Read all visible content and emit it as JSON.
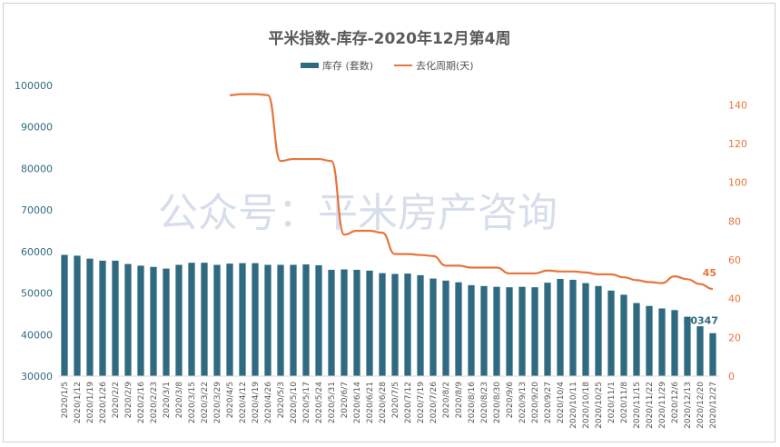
{
  "chart_data": {
    "type": "bar",
    "title": "平米指数-库存-2020年12月第4周",
    "watermark": "公众号：平米房产咨询",
    "categories": [
      "2020/1/5",
      "2020/1/12",
      "2020/1/19",
      "2020/1/26",
      "2020/2/2",
      "2020/2/9",
      "2020/2/16",
      "2020/2/23",
      "2020/3/1",
      "2020/3/8",
      "2020/3/15",
      "2020/3/22",
      "2020/3/29",
      "2020/4/5",
      "2020/4/12",
      "2020/4/19",
      "2020/4/26",
      "2020/5/3",
      "2020/5/10",
      "2020/5/17",
      "2020/5/24",
      "2020/5/31",
      "2020/6/7",
      "2020/6/14",
      "2020/6/21",
      "2020/6/28",
      "2020/7/5",
      "2020/7/12",
      "2020/7/19",
      "2020/7/26",
      "2020/8/2",
      "2020/8/9",
      "2020/8/16",
      "2020/8/23",
      "2020/8/30",
      "2020/9/6",
      "2020/9/13",
      "2020/9/20",
      "2020/9/27",
      "2020/10/4",
      "2020/10/11",
      "2020/10/18",
      "2020/10/25",
      "2020/11/1",
      "2020/11/8",
      "2020/11/15",
      "2020/11/22",
      "2020/11/29",
      "2020/12/6",
      "2020/12/13",
      "2020/12/20",
      "2020/12/27"
    ],
    "series": [
      {
        "name": "库存 (套数)",
        "type": "bar",
        "axis": "left",
        "color": "#2f6a80",
        "values": [
          59200,
          59000,
          58300,
          57800,
          57800,
          57000,
          56600,
          56300,
          55900,
          56800,
          57300,
          57300,
          56800,
          57100,
          57200,
          57200,
          56800,
          56800,
          56800,
          56900,
          56700,
          55600,
          55700,
          55600,
          55400,
          54800,
          54600,
          54700,
          54300,
          53500,
          53000,
          52600,
          51900,
          51700,
          51500,
          51400,
          51500,
          51400,
          52500,
          53400,
          53200,
          52400,
          51700,
          50600,
          49600,
          47600,
          46900,
          46300,
          45900,
          44300,
          42000,
          40347
        ]
      },
      {
        "name": "去化周期(天)",
        "type": "line",
        "axis": "right",
        "color": "#e8743b",
        "values": [
          null,
          null,
          null,
          null,
          null,
          null,
          null,
          null,
          null,
          null,
          null,
          null,
          null,
          145,
          145.5,
          145.5,
          145,
          111,
          112,
          112,
          112,
          111,
          73,
          75,
          75,
          74,
          63,
          63,
          62.5,
          62,
          57,
          57,
          56,
          56,
          56,
          53,
          53,
          53,
          54.5,
          54,
          54,
          53.5,
          52.5,
          52.5,
          51,
          49.5,
          48.5,
          48,
          51.5,
          50,
          47.5,
          45
        ]
      }
    ],
    "ylim_left": [
      30000,
      100000
    ],
    "yticks_left": [
      "30000",
      "40000",
      "50000",
      "60000",
      "70000",
      "80000",
      "90000",
      "100000"
    ],
    "ylim_right": [
      0,
      150
    ],
    "yticks_right": [
      "0",
      "20",
      "40",
      "60",
      "80",
      "100",
      "120",
      "140"
    ],
    "last_bar_label": "40347",
    "last_line_label": "45",
    "legend_position": "top-center",
    "grid": false
  }
}
